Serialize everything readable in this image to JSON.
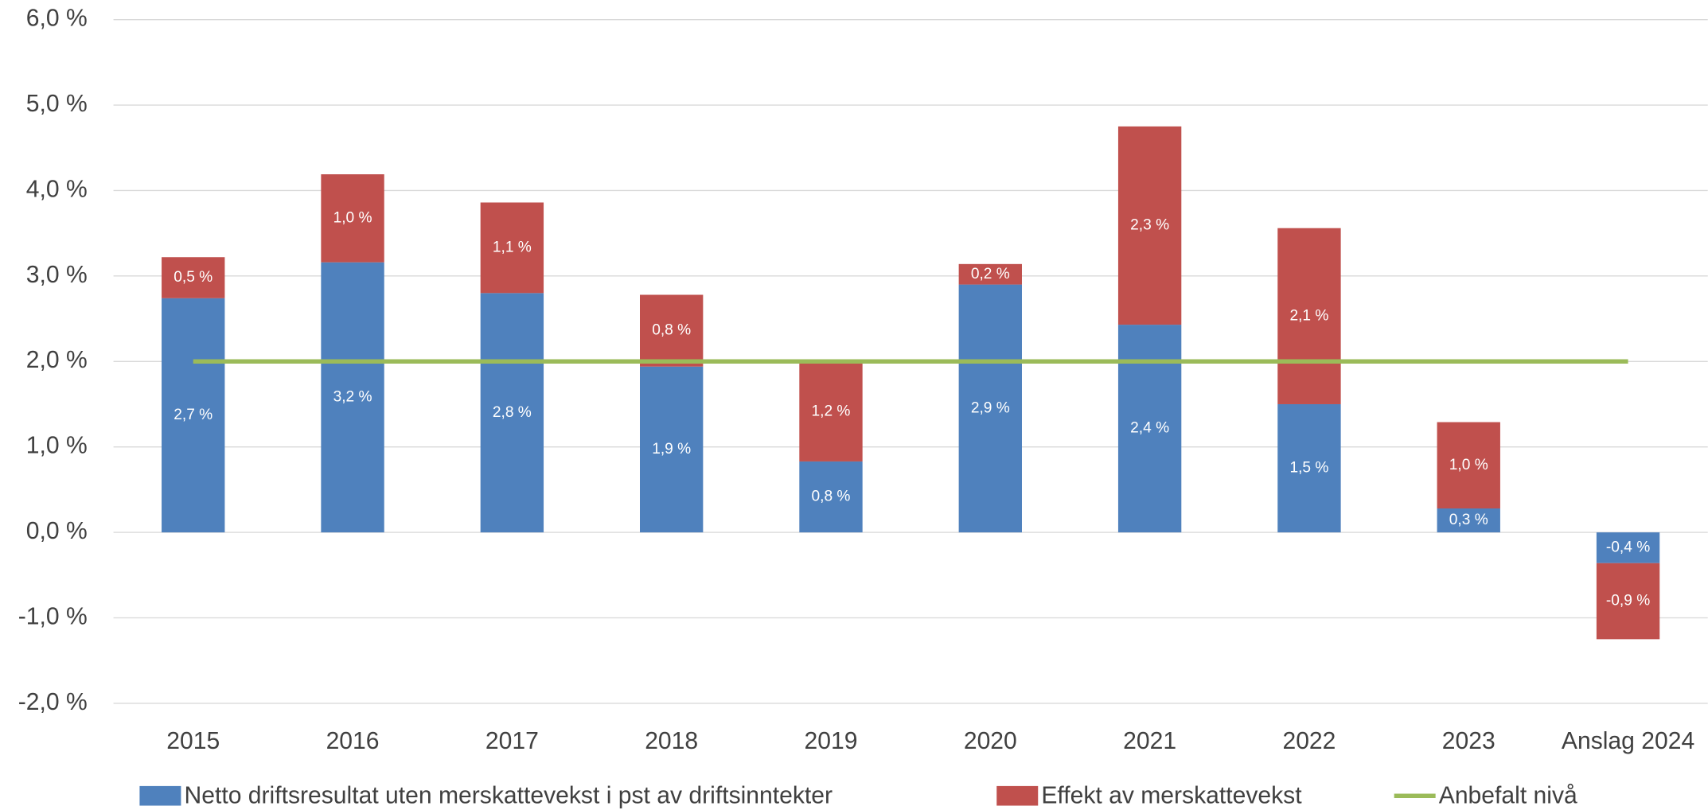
{
  "chart_data": {
    "type": "bar",
    "stacked": true,
    "categories": [
      "2015",
      "2016",
      "2017",
      "2018",
      "2019",
      "2020",
      "2021",
      "2022",
      "2023",
      "Anslag 2024"
    ],
    "series": [
      {
        "name": "Netto driftsresultat uten merskattevekst i pst av driftsinntekter",
        "color": "#4f81bd",
        "type": "bar",
        "values": [
          2.74,
          3.16,
          2.8,
          1.94,
          0.83,
          2.9,
          2.43,
          1.5,
          0.28,
          -0.36
        ],
        "value_labels": [
          "2,7 %",
          "3,2 %",
          "2,8 %",
          "1,9 %",
          "0,8 %",
          "2,9 %",
          "2,4 %",
          "1,5 %",
          "0,3 %",
          "-0,4 %"
        ]
      },
      {
        "name": "Effekt av merskattevekst",
        "color": "#c0504d",
        "type": "bar",
        "values": [
          0.48,
          1.03,
          1.06,
          0.84,
          1.16,
          0.24,
          2.32,
          2.06,
          1.01,
          -0.89
        ],
        "value_labels": [
          "0,5 %",
          "1,0 %",
          "1,1 %",
          "0,8 %",
          "1,2 %",
          "0,2 %",
          "2,3 %",
          "2,1 %",
          "1,0 %",
          "-0,9 %"
        ]
      },
      {
        "name": "Anbefalt nivå",
        "color": "#9bbb59",
        "type": "line",
        "values": [
          2,
          2,
          2,
          2,
          2,
          2,
          2,
          2,
          2,
          2
        ]
      }
    ],
    "ylim": [
      -2,
      6
    ],
    "yticks": [
      {
        "value": -2,
        "label": "-2,0 %"
      },
      {
        "value": -1,
        "label": "-1,0 %"
      },
      {
        "value": 0,
        "label": "0,0 %"
      },
      {
        "value": 1,
        "label": "1,0 %"
      },
      {
        "value": 2,
        "label": "2,0 %"
      },
      {
        "value": 3,
        "label": "3,0 %"
      },
      {
        "value": 4,
        "label": "4,0 %"
      },
      {
        "value": 5,
        "label": "5,0 %"
      },
      {
        "value": 6,
        "label": "6,0 %"
      }
    ],
    "grid": true,
    "legend": "bottom"
  }
}
